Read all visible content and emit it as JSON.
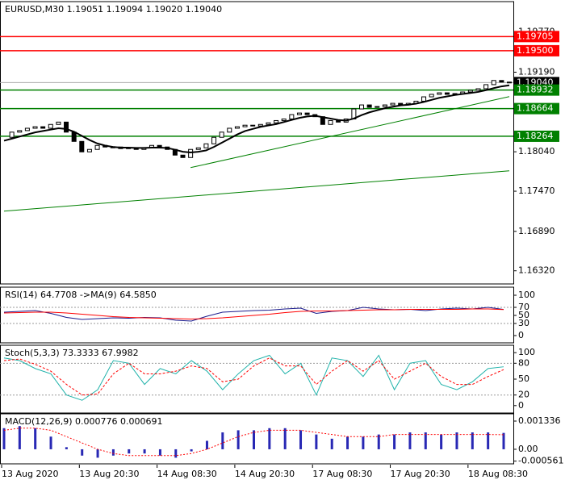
{
  "chart_data": [
    {
      "type": "candlestick",
      "title": "EURUSD,M30  1.19051 1.19094 1.19020 1.19040",
      "categories": [
        "13 Aug 2020",
        null,
        null,
        null,
        null,
        null,
        null,
        null,
        null,
        null,
        "13 Aug 20:30",
        null,
        null,
        null,
        null,
        null,
        null,
        null,
        null,
        null,
        "14 Aug 08:30",
        null,
        null,
        null,
        null,
        null,
        null,
        null,
        null,
        null,
        "14 Aug 20:30",
        null,
        null,
        null,
        null,
        null,
        null,
        null,
        null,
        null,
        "17 Aug 08:30",
        null,
        null,
        null,
        null,
        null,
        null,
        null,
        null,
        null,
        "17 Aug 20:30",
        null,
        null,
        null,
        null,
        null,
        null,
        null,
        null,
        null,
        "18 Aug 08:30",
        null,
        null,
        null,
        null,
        null
      ],
      "close": [
        1.18249,
        1.18324,
        1.18346,
        1.1838,
        1.18402,
        1.1838,
        1.18435,
        1.18469,
        1.18324,
        1.1819,
        1.18039,
        1.18074,
        1.18132,
        1.18109,
        1.18109,
        1.18086,
        1.18097,
        1.18074,
        1.18097,
        1.18132,
        1.18109,
        1.18074,
        1.17992,
        1.17957,
        1.18074,
        1.18097,
        1.18155,
        1.18249,
        1.18324,
        1.1838,
        1.18402,
        1.18424,
        1.18413,
        1.18435,
        1.18458,
        1.18491,
        1.18514,
        1.18577,
        1.186,
        1.18577,
        1.18547,
        1.18435,
        1.18491,
        1.18469,
        1.18514,
        1.18659,
        1.18717,
        1.18682,
        1.18694,
        1.18717,
        1.1874,
        1.18717,
        1.1874,
        1.18771,
        1.18834,
        1.1887,
        1.18892,
        1.1887,
        1.18881,
        1.18904,
        1.18928,
        1.18951,
        1.1901,
        1.1907,
        1.19047,
        1.1904
      ],
      "ma": {
        "color": "#000000",
        "values": [
          1.182,
          1.1823,
          1.1826,
          1.1829,
          1.1832,
          1.1834,
          1.1836,
          1.1838,
          1.1837,
          1.1833,
          1.1827,
          1.1821,
          1.1816,
          1.1813,
          1.1811,
          1.181,
          1.181,
          1.18095,
          1.18095,
          1.181,
          1.181,
          1.18095,
          1.1807,
          1.1804,
          1.1803,
          1.1804,
          1.1806,
          1.1811,
          1.1817,
          1.1823,
          1.1829,
          1.1834,
          1.1837,
          1.184,
          1.1842,
          1.1844,
          1.1847,
          1.185,
          1.1853,
          1.1855,
          1.1856,
          1.1854,
          1.1852,
          1.185,
          1.1849,
          1.1852,
          1.1857,
          1.1861,
          1.1864,
          1.1867,
          1.1869,
          1.1871,
          1.1872,
          1.18735,
          1.1876,
          1.1879,
          1.1882,
          1.1884,
          1.1886,
          1.18875,
          1.1889,
          1.18905,
          1.1893,
          1.1896,
          1.18985,
          1.19
        ]
      },
      "up_color": "#ffffff",
      "down_color": "#000000",
      "ylim": [
        1.1613,
        1.2021
      ],
      "yticks": [
        {
          "value": 1.1977,
          "label": "1.19770"
        },
        {
          "value": 1.1919,
          "label": "1.19190"
        },
        {
          "value": 1.1804,
          "label": "1.18040"
        },
        {
          "value": 1.1747,
          "label": "1.17470"
        },
        {
          "value": 1.1689,
          "label": "1.16890"
        },
        {
          "value": 1.1632,
          "label": "1.16320"
        }
      ],
      "levels": [
        {
          "value": 1.19705,
          "color": "#ff0000"
        },
        {
          "value": 1.195,
          "label": "1.19500",
          "color": "#ff0000"
        },
        {
          "value": 1.1904,
          "label": "1.19040",
          "color": "#000000"
        },
        {
          "value": 1.18932,
          "color": "#008000"
        },
        {
          "value": 1.18664,
          "color": "#008000"
        },
        {
          "value": 1.18264,
          "color": "#008000"
        }
      ],
      "trendlines": [
        {
          "x": [
            24,
            65
          ],
          "values": [
            1.17811,
            1.18837
          ],
          "color": "#008000"
        },
        {
          "x": [
            0,
            65
          ],
          "values": [
            1.17182,
            1.17765
          ],
          "color": "#008000"
        }
      ]
    },
    {
      "type": "line",
      "title": "RSI(14) 64.7708  ->MA(9) 64.5850",
      "series": [
        {
          "color": "#1a1a8c",
          "values": [
            58,
            60,
            62,
            55,
            45,
            40,
            42,
            44,
            43,
            45,
            44,
            38,
            36,
            48,
            58,
            60,
            62,
            63,
            66,
            68,
            55,
            60,
            62,
            70,
            66,
            64,
            65,
            62,
            66,
            68,
            66,
            70,
            64.7708
          ]
        },
        {
          "color": "#ff0000",
          "values": [
            56,
            57,
            58,
            58,
            56,
            53,
            50,
            47,
            45,
            44,
            43,
            42,
            41,
            42,
            44,
            47,
            50,
            53,
            57,
            60,
            61,
            61,
            62,
            63,
            64,
            64,
            65,
            65,
            65,
            65,
            66,
            66,
            64.585
          ]
        }
      ],
      "ylim": [
        -18,
        120
      ],
      "yticks": [
        100,
        70,
        50,
        30,
        0
      ],
      "levels": [
        70,
        30
      ]
    },
    {
      "type": "line",
      "title": "Stoch(5,3,3) 73.3333 67.9982",
      "series": [
        {
          "color": "#20b2aa",
          "values": [
            90,
            85,
            70,
            60,
            20,
            10,
            30,
            85,
            80,
            40,
            70,
            60,
            85,
            65,
            30,
            60,
            85,
            95,
            60,
            80,
            20,
            90,
            85,
            55,
            95,
            30,
            80,
            85,
            40,
            30,
            45,
            70,
            73.3333
          ]
        },
        {
          "color": "#ff0000",
          "dash": true,
          "values": [
            85,
            88,
            78,
            65,
            40,
            20,
            22,
            60,
            80,
            60,
            60,
            65,
            75,
            70,
            45,
            50,
            75,
            90,
            75,
            75,
            40,
            65,
            85,
            65,
            85,
            50,
            65,
            80,
            55,
            40,
            40,
            55,
            67.9982
          ]
        }
      ],
      "ylim": [
        -14,
        114
      ],
      "yticks": [
        100,
        80,
        50,
        20,
        0
      ],
      "levels": [
        80,
        20
      ]
    },
    {
      "type": "macd",
      "title": "MACD(12,26,9) 0.000776 0.000691",
      "series": [
        {
          "kind": "bar",
          "color": "#2828b4",
          "values": [
            0.001,
            0.0011,
            0.001,
            0.0006,
            0.0001,
            -0.0003,
            -0.0004,
            -0.0003,
            -0.0002,
            -0.0002,
            -0.0003,
            -0.0004,
            -0.0001,
            0.0004,
            0.0008,
            0.0009,
            0.0009,
            0.001,
            0.001,
            0.0009,
            0.0007,
            0.0005,
            0.0006,
            0.0006,
            0.0007,
            0.0007,
            0.0008,
            0.0008,
            0.0007,
            0.0008,
            0.0008,
            0.0008,
            0.000776
          ]
        },
        {
          "kind": "line",
          "color": "#ff0000",
          "dash": true,
          "values": [
            0.0009,
            0.001,
            0.001,
            0.0009,
            0.0006,
            0.0003,
            0,
            -0.0002,
            -0.0003,
            -0.0003,
            -0.0003,
            -0.0003,
            -0.0002,
            0,
            0.0003,
            0.0006,
            0.0008,
            0.0009,
            0.0009,
            0.0009,
            0.0008,
            0.0007,
            0.0006,
            0.0006,
            0.0006,
            0.0007,
            0.0007,
            0.0007,
            0.0007,
            0.0007,
            0.0007,
            0.0007,
            0.000691
          ]
        }
      ],
      "ylim": [
        -0.00069,
        0.00168
      ],
      "yticks": [
        0.001336,
        {
          "value": 0,
          "label": "0.00"
        },
        -0.000561
      ]
    }
  ]
}
